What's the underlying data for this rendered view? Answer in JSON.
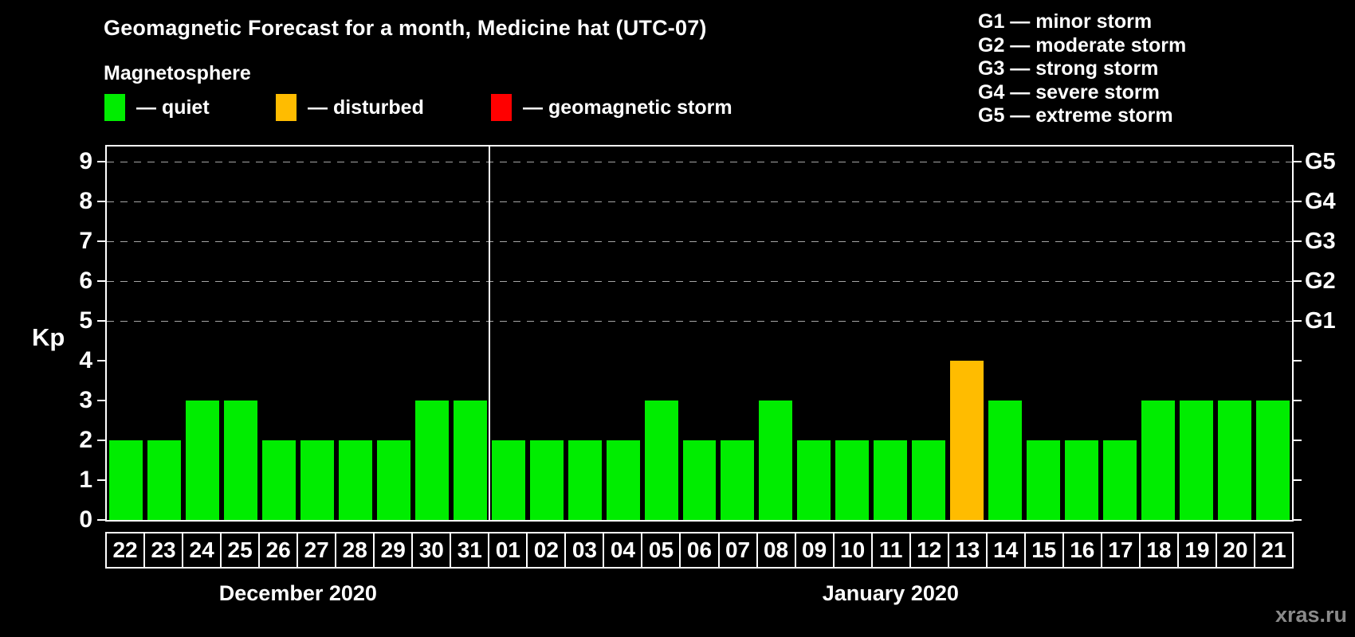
{
  "header": {
    "title": "Geomagnetic Forecast for a month, Medicine hat (UTC-07)"
  },
  "subtitle": "Magnetosphere",
  "magnetosphere_legend": {
    "items": [
      {
        "key": "quiet",
        "label": "— quiet"
      },
      {
        "key": "disturbed",
        "label": "— disturbed"
      },
      {
        "key": "storm",
        "label": "— geomagnetic storm"
      }
    ]
  },
  "g_scale_legend": {
    "items": [
      {
        "label": "G1 — minor storm"
      },
      {
        "label": "G2 — moderate storm"
      },
      {
        "label": "G3 — strong storm"
      },
      {
        "label": "G4 — severe storm"
      },
      {
        "label": "G5 — extreme storm"
      }
    ]
  },
  "colors": {
    "quiet": "#00ed00",
    "disturbed": "#ffbc00",
    "storm": "#ff0000",
    "grid": "#a6a6a6",
    "axis": "#ffffff",
    "watermark": "#8a8a8a"
  },
  "axis": {
    "y_title": "Kp",
    "y_ticks": [
      0,
      1,
      2,
      3,
      4,
      5,
      6,
      7,
      8,
      9
    ],
    "gridlines": [
      5,
      6,
      7,
      8,
      9
    ],
    "g_labels": [
      {
        "kp": 5,
        "text": "G1"
      },
      {
        "kp": 6,
        "text": "G2"
      },
      {
        "kp": 7,
        "text": "G3"
      },
      {
        "kp": 8,
        "text": "G4"
      },
      {
        "kp": 9,
        "text": "G5"
      }
    ]
  },
  "calendar": {
    "months": [
      {
        "label": "December 2020",
        "days": [
          "22",
          "23",
          "24",
          "25",
          "26",
          "27",
          "28",
          "29",
          "30",
          "31"
        ],
        "values": [
          2,
          2,
          3,
          3,
          2,
          2,
          2,
          2,
          3,
          3
        ],
        "levels": [
          "quiet",
          "quiet",
          "quiet",
          "quiet",
          "quiet",
          "quiet",
          "quiet",
          "quiet",
          "quiet",
          "quiet"
        ]
      },
      {
        "label": "January 2020",
        "days": [
          "01",
          "02",
          "03",
          "04",
          "05",
          "06",
          "07",
          "08",
          "09",
          "10",
          "11",
          "12",
          "13",
          "14",
          "15",
          "16",
          "17",
          "18",
          "19",
          "20",
          "21"
        ],
        "values": [
          2,
          2,
          2,
          2,
          3,
          2,
          2,
          3,
          2,
          2,
          2,
          2,
          4,
          3,
          2,
          2,
          2,
          3,
          3,
          3,
          3
        ],
        "levels": [
          "quiet",
          "quiet",
          "quiet",
          "quiet",
          "quiet",
          "quiet",
          "quiet",
          "quiet",
          "quiet",
          "quiet",
          "quiet",
          "quiet",
          "disturbed",
          "quiet",
          "quiet",
          "quiet",
          "quiet",
          "quiet",
          "quiet",
          "quiet",
          "quiet"
        ]
      }
    ]
  },
  "watermark": "xras.ru",
  "chart_data": {
    "type": "bar",
    "title": "Geomagnetic Forecast for a month, Medicine hat (UTC-07)",
    "xlabel": "",
    "ylabel": "Kp",
    "ylim": [
      0,
      9.4
    ],
    "yticks": [
      0,
      1,
      2,
      3,
      4,
      5,
      6,
      7,
      8,
      9
    ],
    "grid": "dashed horizontal lines at Kp 5-9 only",
    "right_axis_labels": {
      "5": "G1",
      "6": "G2",
      "7": "G3",
      "8": "G4",
      "9": "G5"
    },
    "legend_position": "top-left (magnetosphere colors) and top-right (G storm scale)",
    "categories": [
      "Dec 22",
      "Dec 23",
      "Dec 24",
      "Dec 25",
      "Dec 26",
      "Dec 27",
      "Dec 28",
      "Dec 29",
      "Dec 30",
      "Dec 31",
      "Jan 01",
      "Jan 02",
      "Jan 03",
      "Jan 04",
      "Jan 05",
      "Jan 06",
      "Jan 07",
      "Jan 08",
      "Jan 09",
      "Jan 10",
      "Jan 11",
      "Jan 12",
      "Jan 13",
      "Jan 14",
      "Jan 15",
      "Jan 16",
      "Jan 17",
      "Jan 18",
      "Jan 19",
      "Jan 20",
      "Jan 21"
    ],
    "series": [
      {
        "name": "Kp forecast",
        "values": [
          2,
          2,
          3,
          3,
          2,
          2,
          2,
          2,
          3,
          3,
          2,
          2,
          2,
          2,
          3,
          2,
          2,
          3,
          2,
          2,
          2,
          2,
          4,
          3,
          2,
          2,
          2,
          3,
          3,
          3,
          3
        ],
        "bar_levels": [
          "quiet",
          "quiet",
          "quiet",
          "quiet",
          "quiet",
          "quiet",
          "quiet",
          "quiet",
          "quiet",
          "quiet",
          "quiet",
          "quiet",
          "quiet",
          "quiet",
          "quiet",
          "quiet",
          "quiet",
          "quiet",
          "quiet",
          "quiet",
          "quiet",
          "quiet",
          "disturbed",
          "quiet",
          "quiet",
          "quiet",
          "quiet",
          "quiet",
          "quiet",
          "quiet",
          "quiet"
        ]
      }
    ]
  }
}
